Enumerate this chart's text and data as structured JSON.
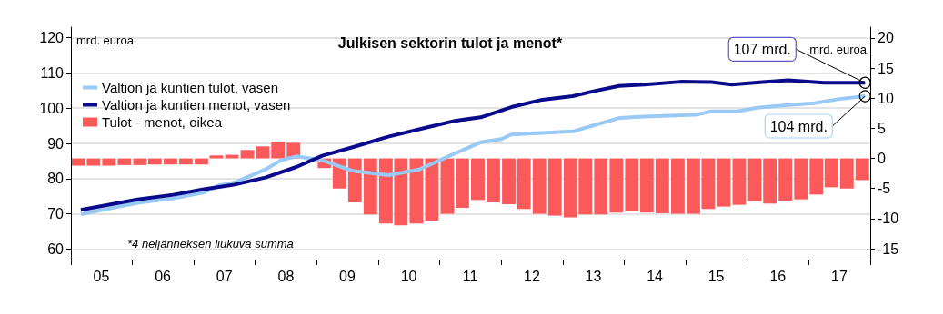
{
  "chart_data": {
    "type": "line",
    "title": "Julkisen sektorin tulot ja menot*",
    "ylabel": "mrd. euroa",
    "y2label": "mrd. euroa",
    "xlim": [
      "2005-01-01",
      "2018-01-01"
    ],
    "xticks": [
      {
        "value": "2005-01-01",
        "label": null
      },
      {
        "value": "2005-07-01",
        "label": "05"
      },
      {
        "value": "2006-01-01",
        "label": null
      },
      {
        "value": "2006-07-01",
        "label": "06"
      },
      {
        "value": "2007-01-01",
        "label": null
      },
      {
        "value": "2007-07-01",
        "label": "07"
      },
      {
        "value": "2008-01-01",
        "label": null
      },
      {
        "value": "2008-07-01",
        "label": "08"
      },
      {
        "value": "2009-01-01",
        "label": null
      },
      {
        "value": "2009-07-01",
        "label": "09"
      },
      {
        "value": "2010-01-01",
        "label": null
      },
      {
        "value": "2010-07-01",
        "label": "10"
      },
      {
        "value": "2011-01-01",
        "label": null
      },
      {
        "value": "2011-07-01",
        "label": "11"
      },
      {
        "value": "2012-01-01",
        "label": null
      },
      {
        "value": "2012-07-01",
        "label": "12"
      },
      {
        "value": "2013-01-01",
        "label": null
      },
      {
        "value": "2013-07-01",
        "label": "13"
      },
      {
        "value": "2014-01-01",
        "label": null
      },
      {
        "value": "2014-07-01",
        "label": "14"
      },
      {
        "value": "2015-01-01",
        "label": null
      },
      {
        "value": "2015-07-01",
        "label": "15"
      },
      {
        "value": "2016-01-01",
        "label": null
      },
      {
        "value": "2016-07-01",
        "label": "16"
      },
      {
        "value": "2017-01-01",
        "label": null
      },
      {
        "value": "2017-07-01",
        "label": "17"
      },
      {
        "value": "2018-01-01",
        "label": null
      }
    ],
    "ylim": [
      57,
      123
    ],
    "yticks": [
      60,
      70,
      80,
      90,
      100,
      110,
      120
    ],
    "y2lim": [
      -16.8,
      21.8
    ],
    "y2ticks": [
      -15,
      -10,
      -5,
      0,
      5,
      10,
      15,
      20
    ],
    "grid": "y",
    "legend": "top left",
    "series": [
      {
        "name": "Valtion ja kuntien tulot, vasen",
        "color": "#99c9f5",
        "x": [
          "2005-03",
          "2006-02",
          "2006-09",
          "2007-03",
          "2007-06",
          "2007-09",
          "2008-03",
          "2008-06",
          "2008-09",
          "2009-02",
          "2009-08",
          "2010-03",
          "2010-09",
          "2011-03",
          "2011-09",
          "2012-01",
          "2012-03",
          "2013-03",
          "2013-07",
          "2013-12",
          "2014-05",
          "2015-03",
          "2015-06",
          "2015-11",
          "2016-03",
          "2016-09",
          "2017-02",
          "2017-07",
          "2017-12"
        ],
        "values": [
          69.9,
          73.1,
          74.4,
          76.1,
          78.1,
          78.9,
          82.6,
          85.2,
          86.3,
          85.2,
          82.2,
          81.0,
          82.6,
          86.5,
          90.3,
          91.2,
          92.5,
          93.4,
          95.1,
          97.2,
          97.6,
          98.1,
          99.1,
          99.1,
          100.1,
          100.9,
          101.4,
          102.6,
          103.4
        ]
      },
      {
        "name": "Valtion ja kuntien menot, vasen",
        "color": "#0a0a8c",
        "x": [
          "2005-03",
          "2006-02",
          "2006-09",
          "2007-03",
          "2007-09",
          "2008-03",
          "2008-09",
          "2009-02",
          "2009-08",
          "2010-03",
          "2010-11",
          "2011-04",
          "2011-09",
          "2012-03",
          "2012-09",
          "2013-03",
          "2013-07",
          "2013-12",
          "2014-05",
          "2014-12",
          "2015-06",
          "2015-10",
          "2016-04",
          "2016-09",
          "2017-04",
          "2017-12"
        ],
        "values": [
          71.1,
          74.1,
          75.4,
          77.0,
          78.3,
          80.3,
          83.3,
          86.5,
          88.9,
          91.9,
          94.7,
          96.4,
          97.4,
          100.3,
          102.4,
          103.4,
          104.8,
          106.3,
          106.7,
          107.5,
          107.4,
          106.7,
          107.4,
          107.9,
          107.2,
          107.2
        ]
      },
      {
        "name": "Tulot - menot, oikea",
        "type": "bar",
        "axis": "y2",
        "color": "#fc5a5a",
        "x": [
          "2005-02-15",
          "2005-05-15",
          "2005-08-15",
          "2005-11-15",
          "2006-02-15",
          "2006-05-15",
          "2006-08-15",
          "2006-11-15",
          "2007-02-15",
          "2007-05-15",
          "2007-08-15",
          "2007-11-15",
          "2008-02-15",
          "2008-05-15",
          "2008-08-15",
          "2008-11-15",
          "2009-02-15",
          "2009-05-15",
          "2009-08-15",
          "2009-11-15",
          "2010-02-15",
          "2010-05-15",
          "2010-08-15",
          "2010-11-15",
          "2011-02-15",
          "2011-05-15",
          "2011-08-15",
          "2011-11-15",
          "2012-02-15",
          "2012-05-15",
          "2012-08-15",
          "2012-11-15",
          "2013-02-15",
          "2013-05-15",
          "2013-08-15",
          "2013-11-15",
          "2014-02-15",
          "2014-05-15",
          "2014-08-15",
          "2014-11-15",
          "2015-02-15",
          "2015-05-15",
          "2015-08-15",
          "2015-11-15",
          "2016-02-15",
          "2016-05-15",
          "2016-08-15",
          "2016-11-15",
          "2017-02-15",
          "2017-05-15",
          "2017-08-15",
          "2017-11-15"
        ],
        "values": [
          -1.2,
          -1.2,
          -1.2,
          -1.1,
          -1.1,
          -1.0,
          -1.0,
          -1.0,
          -1.0,
          0.5,
          0.6,
          1.4,
          2.0,
          2.8,
          2.6,
          0,
          -1.6,
          -5.0,
          -7.3,
          -9.3,
          -10.8,
          -11.1,
          -10.8,
          -10.3,
          -9.2,
          -8.2,
          -6.9,
          -7.3,
          -7.6,
          -8.4,
          -9.2,
          -9.5,
          -9.8,
          -9.3,
          -9.3,
          -9.0,
          -8.8,
          -9.0,
          -9.1,
          -9.2,
          -9.2,
          -8.4,
          -8.0,
          -7.7,
          -7.1,
          -7.5,
          -7.0,
          -6.8,
          -6.0,
          -4.8,
          -5.0,
          -3.6
        ]
      }
    ],
    "annotations": [
      {
        "text": "107 mrd.",
        "x": "2017-12",
        "y": 107.2
      },
      {
        "text": "104 mrd.",
        "x": "2017-12",
        "y": 103.4
      },
      "*4 neljänneksen liukuva summa"
    ]
  }
}
